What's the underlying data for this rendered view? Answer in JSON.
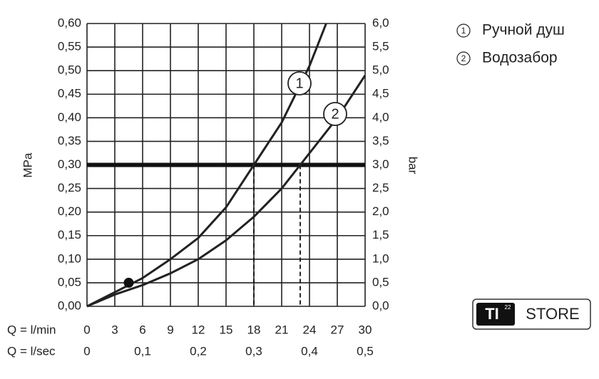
{
  "chart_data": {
    "type": "line",
    "xlabel": "Q = l/min",
    "x2label": "Q = l/sec",
    "ylabel": "MPa",
    "y2label": "bar",
    "xlim": [
      0,
      30
    ],
    "xticks": [
      0,
      3,
      6,
      9,
      12,
      15,
      18,
      21,
      24,
      27,
      30
    ],
    "x2lim": [
      0,
      0.5
    ],
    "x2ticks": [
      0,
      {
        "value": 0.1,
        "label": "0,1"
      },
      {
        "value": 0.2,
        "label": "0,2"
      },
      {
        "value": 0.3,
        "label": "0,3"
      },
      {
        "value": 0.4,
        "label": "0,4"
      },
      {
        "value": 0.5,
        "label": "0,5"
      }
    ],
    "ylim": [
      0,
      0.6
    ],
    "yticks": [
      {
        "value": 0,
        "label": "0,00"
      },
      {
        "value": 0.05,
        "label": "0,05"
      },
      {
        "value": 0.1,
        "label": "0,10"
      },
      {
        "value": 0.15,
        "label": "0,15"
      },
      {
        "value": 0.2,
        "label": "0,20"
      },
      {
        "value": 0.25,
        "label": "0,25"
      },
      {
        "value": 0.3,
        "label": "0,30"
      },
      {
        "value": 0.35,
        "label": "0,35"
      },
      {
        "value": 0.4,
        "label": "0,40"
      },
      {
        "value": 0.45,
        "label": "0,45"
      },
      {
        "value": 0.5,
        "label": "0,50"
      },
      {
        "value": 0.55,
        "label": "0,55"
      },
      {
        "value": 0.6,
        "label": "0,60"
      }
    ],
    "y2lim": [
      0,
      6
    ],
    "y2ticks": [
      {
        "value": 0,
        "label": "0,0"
      },
      {
        "value": 0.5,
        "label": "0,5"
      },
      {
        "value": 1,
        "label": "1,0"
      },
      {
        "value": 1.5,
        "label": "1,5"
      },
      {
        "value": 2,
        "label": "2,0"
      },
      {
        "value": 2.5,
        "label": "2,5"
      },
      {
        "value": 3,
        "label": "3,0"
      },
      {
        "value": 3.5,
        "label": "3,5"
      },
      {
        "value": 4,
        "label": "4,0"
      },
      {
        "value": 4.5,
        "label": "4,5"
      },
      {
        "value": 5,
        "label": "5,0"
      },
      {
        "value": 5.5,
        "label": "5,5"
      },
      {
        "value": 6,
        "label": "6,0"
      }
    ],
    "grid": true,
    "reference_line": 0.3,
    "drop_lines": [
      18,
      23
    ],
    "point": {
      "x": 4.5,
      "y": 0.05
    },
    "series": [
      {
        "name": "Ручной душ",
        "marker_label": "1",
        "color": "#222222",
        "x": [
          0,
          3,
          6,
          9,
          12,
          15,
          18,
          21,
          24,
          25.8
        ],
        "values": [
          0,
          0.03,
          0.06,
          0.1,
          0.145,
          0.21,
          0.3,
          0.39,
          0.51,
          0.6
        ]
      },
      {
        "name": "Водозабор",
        "marker_label": "2",
        "color": "#222222",
        "x": [
          0,
          3,
          6,
          9,
          12,
          15,
          18,
          21,
          23,
          27,
          30
        ],
        "values": [
          0,
          0.025,
          0.045,
          0.07,
          0.1,
          0.14,
          0.19,
          0.25,
          0.3,
          0.4,
          0.49
        ]
      }
    ]
  },
  "logo": {
    "brand": "TI",
    "superscript": "22",
    "text": "STORE"
  }
}
